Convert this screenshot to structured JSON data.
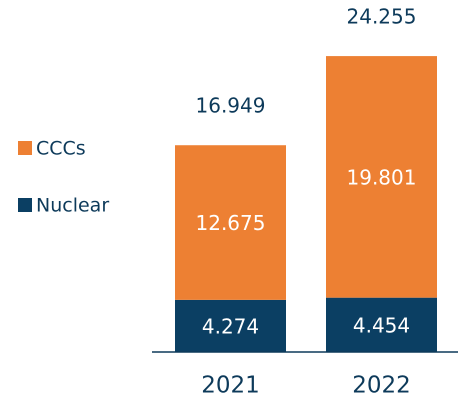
{
  "chart_data": {
    "type": "stacked_bar",
    "categories": [
      "2021",
      "2022"
    ],
    "series": [
      {
        "name": "Nuclear",
        "color": "#0b3f63",
        "values": [
          4.274,
          4.454
        ]
      },
      {
        "name": "CCCs",
        "color": "#ed8033",
        "values": [
          12.675,
          19.801
        ]
      }
    ],
    "totals": [
      16.949,
      24.255
    ]
  }
}
